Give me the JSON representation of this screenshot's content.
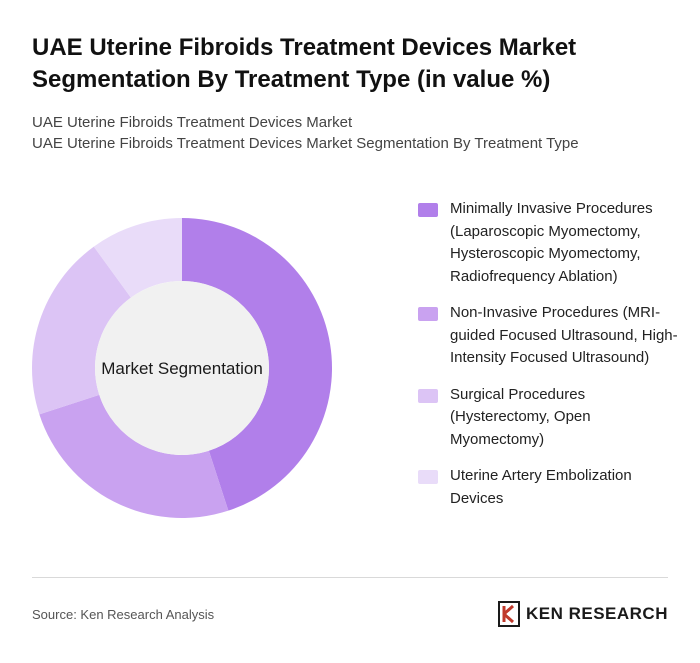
{
  "header": {
    "title": "UAE Uterine Fibroids Treatment Devices Market Segmentation By Treatment Type (in value %)",
    "subtitle_line1": "UAE Uterine Fibroids Treatment Devices Market",
    "subtitle_line2": "UAE Uterine Fibroids Treatment Devices Market Segmentation By Treatment Type"
  },
  "chart_data": {
    "type": "pie",
    "title": "UAE Uterine Fibroids Treatment Devices Market Segmentation By Treatment Type (in value %)",
    "center_label": "Market Segmentation",
    "categories": [
      "Minimally Invasive Procedures (Laparoscopic Myomectomy, Hysteroscopic Myomectomy, Radiofrequency Ablation)",
      "Non-Invasive Procedures (MRI-guided Focused Ultrasound, High-Intensity Focused Ultrasound)",
      "Surgical Procedures (Hysterectomy, Open Myomectomy)",
      "Uterine Artery Embolization Devices"
    ],
    "values": [
      45,
      25,
      20,
      10
    ],
    "colors": [
      "#b17fea",
      "#c9a2f0",
      "#dcc4f5",
      "#e9dcf9"
    ],
    "legend_position": "right",
    "donut": true
  },
  "footer": {
    "source": "Source: Ken Research Analysis",
    "logo_text": "KEN RESEARCH"
  }
}
